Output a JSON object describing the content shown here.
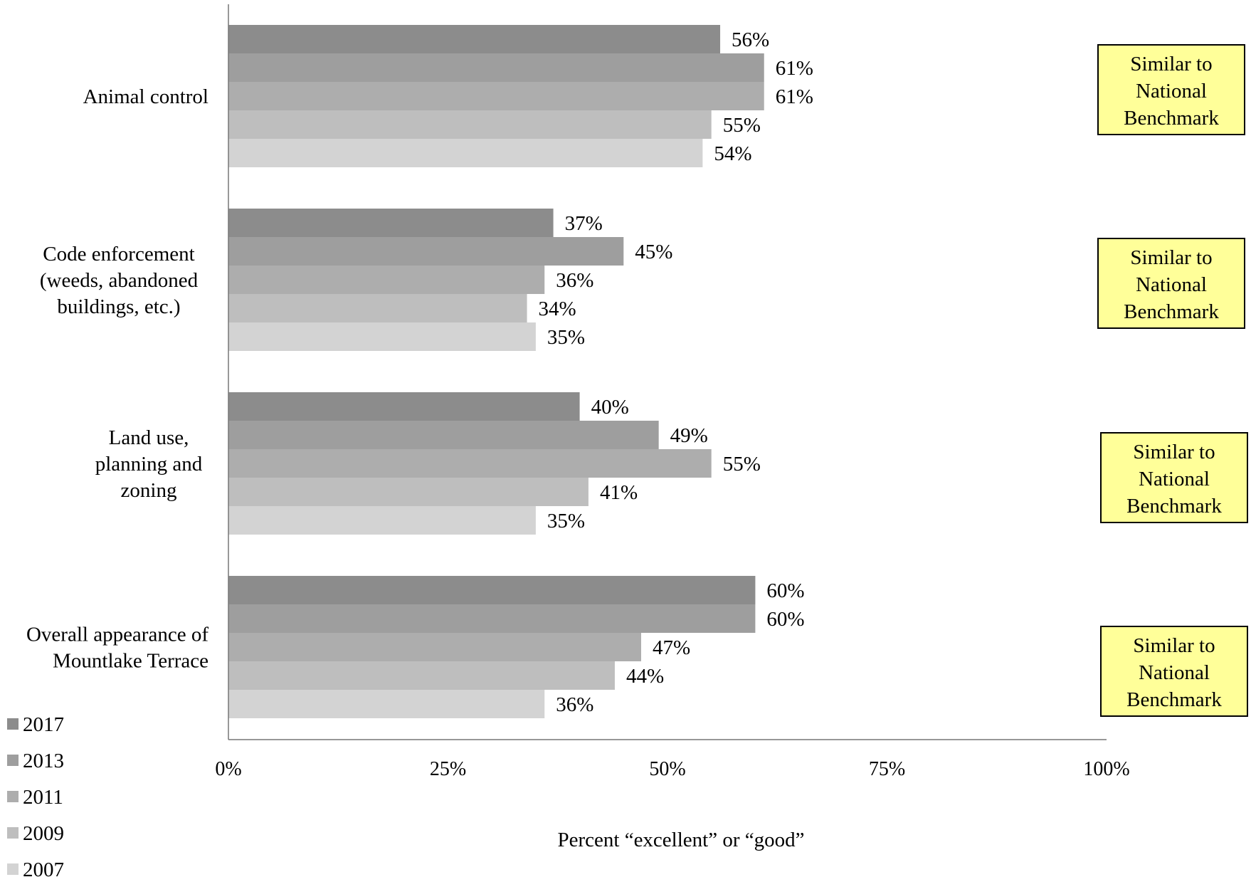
{
  "chart_data": {
    "type": "bar",
    "orientation": "horizontal",
    "categories": [
      [
        "Animal control"
      ],
      [
        "Code enforcement",
        "(weeds, abandoned",
        "buildings, etc.)"
      ],
      [
        "Land use,",
        "planning and",
        "zoning"
      ],
      [
        "Overall appearance of",
        "Mountlake Terrace"
      ]
    ],
    "series": [
      {
        "name": "2017",
        "values": [
          56,
          37,
          40,
          60
        ],
        "labels": [
          "56%",
          "37%",
          "40%",
          "60%"
        ],
        "color": "#8c8c8c"
      },
      {
        "name": "2013",
        "values": [
          61,
          45,
          49,
          60
        ],
        "labels": [
          "61%",
          "45%",
          "49%",
          "60%"
        ],
        "color": "#9e9e9e"
      },
      {
        "name": "2011",
        "values": [
          61,
          36,
          55,
          47
        ],
        "labels": [
          "61%",
          "36%",
          "55%",
          "47%"
        ],
        "color": "#adadad"
      },
      {
        "name": "2009",
        "values": [
          55,
          34,
          41,
          44
        ],
        "labels": [
          "55%",
          "34%",
          "41%",
          "44%"
        ],
        "color": "#bebebe"
      },
      {
        "name": "2007",
        "values": [
          54,
          35,
          35,
          36
        ],
        "labels": [
          "54%",
          "35%",
          "35%",
          "36%"
        ],
        "color": "#d3d3d3"
      }
    ],
    "xlim": [
      0,
      100
    ],
    "xticks": [
      0,
      25,
      50,
      75,
      100
    ],
    "xtick_labels": [
      "0%",
      "25%",
      "50%",
      "75%",
      "100%"
    ],
    "xlabel": "Percent “excellent” or “good”",
    "ylabel": "",
    "title": "",
    "grid": false,
    "legend_position": "bottom-left",
    "benchmarks": [
      [
        "Similar to",
        "National",
        "Benchmark"
      ],
      [
        "Similar to",
        "National",
        "Benchmark"
      ],
      [
        "Similar to",
        "National",
        "Benchmark"
      ],
      [
        "Similar to",
        "National",
        "Benchmark"
      ]
    ],
    "benchmark_color": "#ffff99"
  }
}
